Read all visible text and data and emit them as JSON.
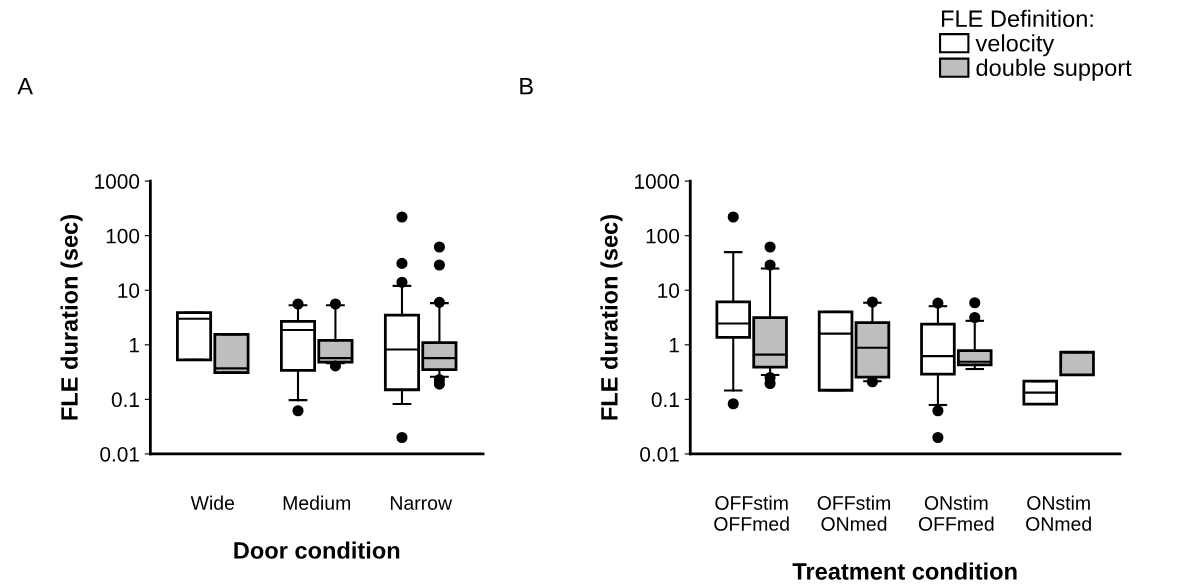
{
  "chart_data": [
    {
      "type": "box",
      "title": "A",
      "xlabel": "Door condition",
      "ylabel": "FLE duration (sec)",
      "categories": [
        "Wide",
        "Medium",
        "Narrow"
      ],
      "log": "y",
      "ylim": [
        0.01,
        1000
      ],
      "yticks": [
        0.01,
        0.1,
        1,
        10,
        100,
        1000
      ],
      "grid": false,
      "legend": false,
      "series": [
        {
          "color": "#ffffff",
          "boxes": [
            {
              "low": 0.53,
              "q1": 0.53,
              "median": 3.0,
              "q3": 3.9,
              "high": 3.9
            },
            {
              "low": 0.097,
              "q1": 0.34,
              "median": 1.87,
              "q3": 2.7,
              "high": 5.3,
              "outliers": [
                5.6,
                0.062
              ]
            },
            {
              "low": 0.082,
              "q1": 0.15,
              "median": 0.82,
              "q3": 3.5,
              "high": 12,
              "outliers": [
                220,
                31,
                14,
                0.02
              ]
            }
          ]
        },
        {
          "color": "#bebebe",
          "boxes": [
            {
              "low": 0.31,
              "q1": 0.31,
              "median": 0.37,
              "q3": 1.55,
              "high": 1.55
            },
            {
              "low": 0.46,
              "q1": 0.48,
              "median": 0.57,
              "q3": 1.2,
              "high": 5.3,
              "outliers": [
                5.6,
                0.41
              ]
            },
            {
              "low": 0.26,
              "q1": 0.35,
              "median": 0.57,
              "q3": 1.1,
              "high": 5.8,
              "outliers": [
                62,
                29,
                6.0,
                0.23,
                0.19
              ]
            }
          ]
        }
      ]
    },
    {
      "type": "box",
      "title": "B",
      "xlabel": "Treatment condition",
      "ylabel": "FLE duration (sec)",
      "categories": [
        "OFFstim\nOFFmed",
        "OFFstim\nONmed",
        "ONstim\nOFFmed",
        "ONstim\nONmed"
      ],
      "log": "y",
      "ylim": [
        0.01,
        1000
      ],
      "yticks": [
        0.01,
        0.1,
        1,
        10,
        100,
        1000
      ],
      "grid": false,
      "legend": "top right",
      "legend_title": "FLE Definition:",
      "series": [
        {
          "name": "velocity",
          "color": "#ffffff",
          "boxes": [
            {
              "low": 0.145,
              "q1": 1.37,
              "median": 2.45,
              "q3": 6.1,
              "high": 50,
              "outliers": [
                220,
                0.083
              ]
            },
            {
              "low": 0.147,
              "q1": 0.147,
              "median": 1.6,
              "q3": 4.0,
              "high": 4.0
            },
            {
              "low": 0.079,
              "q1": 0.29,
              "median": 0.62,
              "q3": 2.4,
              "high": 5.1,
              "outliers": [
                5.8,
                0.062,
                0.02
              ]
            },
            {
              "low": 0.082,
              "q1": 0.082,
              "median": 0.133,
              "q3": 0.215,
              "high": 0.215
            }
          ]
        },
        {
          "name": "double support",
          "color": "#bebebe",
          "boxes": [
            {
              "low": 0.28,
              "q1": 0.39,
              "median": 0.66,
              "q3": 3.16,
              "high": 25,
              "outliers": [
                62,
                29,
                0.25,
                0.195
              ]
            },
            {
              "low": 0.215,
              "q1": 0.255,
              "median": 0.88,
              "q3": 2.55,
              "high": 5.9,
              "outliers": [
                6.1,
                0.21
              ]
            },
            {
              "low": 0.36,
              "q1": 0.43,
              "median": 0.49,
              "q3": 0.78,
              "high": 2.75,
              "outliers": [
                5.9,
                3.16
              ]
            },
            {
              "low": 0.28,
              "q1": 0.28,
              "median": 0.28,
              "q3": 0.73,
              "high": 0.73
            }
          ]
        }
      ]
    }
  ]
}
